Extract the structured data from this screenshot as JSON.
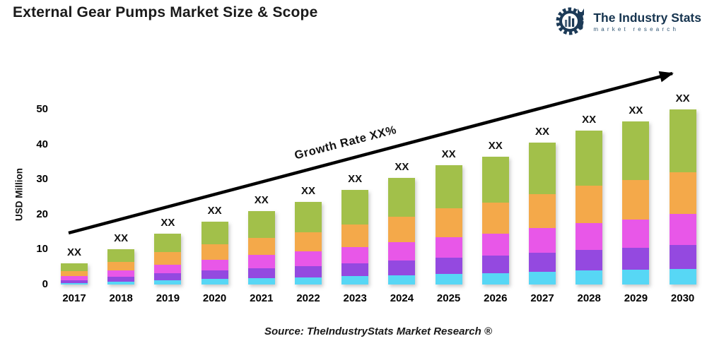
{
  "title": "External Gear Pumps Market Size & Scope",
  "logo": {
    "name": "The Industry Stats",
    "tagline": "market research",
    "color": "#1c3a57"
  },
  "growth_label": "Growth Rate XX%",
  "source": "Source: TheIndustryStats Market Research ®",
  "chart_data": {
    "type": "bar",
    "stacked": true,
    "title": "External Gear Pumps Market Size & Scope",
    "xlabel": "",
    "ylabel": "USD Million",
    "ylim": [
      0,
      50
    ],
    "yticks": [
      0,
      10,
      20,
      30,
      40,
      50
    ],
    "grid": false,
    "legend": null,
    "bar_total_label": "XX",
    "categories": [
      "2017",
      "2018",
      "2019",
      "2020",
      "2021",
      "2022",
      "2023",
      "2024",
      "2025",
      "2026",
      "2027",
      "2028",
      "2029",
      "2030"
    ],
    "totals": [
      6,
      10,
      14.5,
      18,
      21,
      23.5,
      27,
      30.5,
      34,
      36.5,
      40.5,
      44,
      46.5,
      50
    ],
    "series": [
      {
        "name": "segment-cyan",
        "color": "#57d7f5",
        "values": [
          0.5,
          0.9,
          1.3,
          1.6,
          1.9,
          2.1,
          2.4,
          2.7,
          3.1,
          3.3,
          3.6,
          4.0,
          4.2,
          4.5
        ]
      },
      {
        "name": "segment-purple",
        "color": "#9449e0",
        "values": [
          0.8,
          1.3,
          1.9,
          2.4,
          2.8,
          3.2,
          3.6,
          4.1,
          4.6,
          4.9,
          5.5,
          5.9,
          6.3,
          6.8
        ]
      },
      {
        "name": "segment-magenta",
        "color": "#e857e8",
        "values": [
          1.1,
          1.8,
          2.5,
          3.1,
          3.7,
          4.1,
          4.7,
          5.3,
          5.9,
          6.4,
          7.1,
          7.7,
          8.1,
          8.8
        ]
      },
      {
        "name": "segment-orange",
        "color": "#f4a94a",
        "values": [
          1.4,
          2.4,
          3.5,
          4.3,
          5.0,
          5.6,
          6.5,
          7.3,
          8.2,
          8.8,
          9.7,
          10.6,
          11.2,
          12.0
        ]
      },
      {
        "name": "segment-green",
        "color": "#a2c04a",
        "values": [
          2.2,
          3.6,
          5.3,
          6.6,
          7.6,
          8.5,
          9.8,
          11.1,
          12.2,
          13.1,
          14.6,
          15.8,
          16.7,
          17.9
        ]
      }
    ],
    "annotation": {
      "text": "Growth Rate XX%",
      "type": "trend-arrow"
    }
  }
}
